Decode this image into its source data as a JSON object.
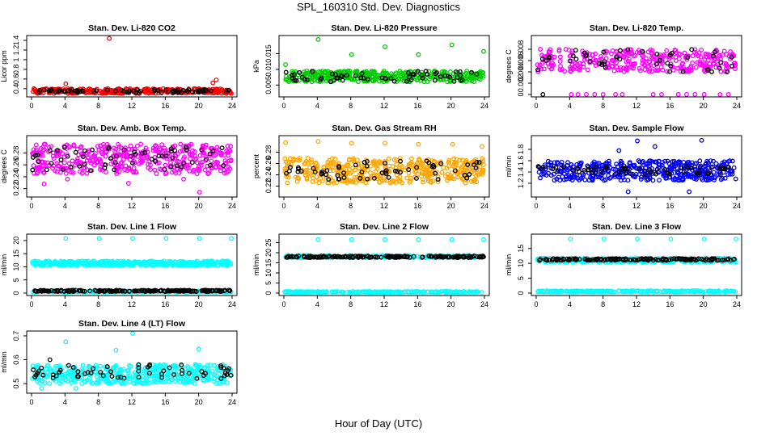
{
  "figure": {
    "title": "SPL_160310  Std. Dev. Diagnostics",
    "xlabel": "Hour of Day (UTC)"
  },
  "chart_data": [
    {
      "type": "scatter",
      "title": "Stan. Dev. Li-820 CO2",
      "ylabel": "Licor ppm",
      "xlim": [
        0,
        24
      ],
      "ylim": [
        0.28,
        1.45
      ],
      "xticks": [
        0,
        4,
        8,
        12,
        16,
        20,
        24
      ],
      "yticks": [
        0.4,
        0.6,
        0.8,
        1.0,
        1.2,
        1.4
      ],
      "series": [
        {
          "color": "#ff0000",
          "band": [
            0.3,
            0.4
          ],
          "n": 300,
          "outliers": [
            [
              9.3,
              1.44
            ],
            [
              22.1,
              0.58
            ],
            [
              21.7,
              0.52
            ],
            [
              4.1,
              0.5
            ],
            [
              23.9,
              0.3
            ]
          ]
        },
        {
          "color": "#000000",
          "band": [
            0.32,
            0.38
          ],
          "n": 70,
          "outliers": []
        }
      ]
    },
    {
      "type": "scatter",
      "title": "Stan. Dev. Li-820 Pressure",
      "ylabel": "kPa",
      "xlim": [
        0,
        24
      ],
      "ylim": [
        0.002,
        0.02
      ],
      "xticks": [
        0,
        4,
        8,
        12,
        16,
        20,
        24
      ],
      "yticks": [
        0.005,
        0.01,
        0.015
      ],
      "series": [
        {
          "color": "#00cc00",
          "band": [
            0.006,
            0.0095
          ],
          "n": 380,
          "outliers": [
            [
              0.2,
              0.0115
            ],
            [
              4.1,
              0.0195
            ],
            [
              8.1,
              0.0147
            ],
            [
              12.1,
              0.0172
            ],
            [
              16.1,
              0.0147
            ],
            [
              20.1,
              0.0178
            ],
            [
              23.9,
              0.0157
            ]
          ]
        },
        {
          "color": "#000000",
          "band": [
            0.006,
            0.0095
          ],
          "n": 60,
          "outliers": []
        }
      ]
    },
    {
      "type": "scatter",
      "title": "Stan. Dev. Li-820 Temp.",
      "ylabel": "degrees C",
      "xlim": [
        0,
        24
      ],
      "ylim": [
        0,
        0.01
      ],
      "xticks": [
        0,
        4,
        8,
        12,
        16,
        20,
        24
      ],
      "yticks": [
        0,
        0.002,
        0.004,
        0.006,
        0.008
      ],
      "series": [
        {
          "color": "#ff00ff",
          "band": [
            0.004,
            0.008
          ],
          "n": 330,
          "outliers": [
            [
              4.2,
              0
            ],
            [
              5,
              0
            ],
            [
              6,
              0
            ],
            [
              7,
              0
            ],
            [
              8,
              0
            ],
            [
              9.5,
              0
            ],
            [
              10.3,
              0
            ],
            [
              14,
              0
            ],
            [
              15,
              0
            ],
            [
              17,
              0
            ],
            [
              18,
              0
            ],
            [
              19,
              0
            ],
            [
              20.1,
              0
            ],
            [
              22,
              0
            ],
            [
              23,
              0
            ]
          ]
        },
        {
          "color": "#000000",
          "band": [
            0.004,
            0.008
          ],
          "n": 45,
          "outliers": [
            [
              0.8,
              0
            ]
          ]
        }
      ]
    },
    {
      "type": "scatter",
      "title": "Stan. Dev. Amb. Box Temp.",
      "ylabel": "degrees C",
      "xlim": [
        0,
        24
      ],
      "ylim": [
        0.21,
        0.305
      ],
      "xticks": [
        0,
        4,
        8,
        12,
        16,
        20,
        24
      ],
      "yticks": [
        0.22,
        0.24,
        0.26,
        0.28
      ],
      "series": [
        {
          "color": "#ff00ff",
          "band": [
            0.245,
            0.295
          ],
          "n": 420,
          "outliers": [
            [
              20.1,
              0.214
            ],
            [
              1.5,
              0.228
            ],
            [
              11.6,
              0.229
            ],
            [
              4.3,
              0.236
            ],
            [
              18.2,
              0.236
            ]
          ]
        },
        {
          "color": "#000000",
          "band": [
            0.25,
            0.29
          ],
          "n": 60,
          "outliers": []
        }
      ]
    },
    {
      "type": "scatter",
      "title": "Stan. Dev. Gas Stream RH",
      "ylabel": "percent",
      "xlim": [
        0,
        24
      ],
      "ylim": [
        0.205,
        0.305
      ],
      "xticks": [
        0,
        4,
        8,
        12,
        16,
        20,
        24
      ],
      "yticks": [
        0.22,
        0.24,
        0.26,
        0.28
      ],
      "series": [
        {
          "color": "#ffa500",
          "band": [
            0.225,
            0.27
          ],
          "n": 420,
          "outliers": [
            [
              0.2,
              0.297
            ],
            [
              4.1,
              0.299
            ],
            [
              8.1,
              0.296
            ],
            [
              12.1,
              0.296
            ],
            [
              16.1,
              0.294
            ],
            [
              20.2,
              0.294
            ],
            [
              23.7,
              0.29
            ]
          ]
        },
        {
          "color": "#000000",
          "band": [
            0.23,
            0.265
          ],
          "n": 60,
          "outliers": []
        }
      ]
    },
    {
      "type": "scatter",
      "title": "Stan. Dev. Sample Flow",
      "ylabel": "ml/min",
      "xlim": [
        0,
        24
      ],
      "ylim": [
        1.0,
        2.0
      ],
      "xticks": [
        0,
        4,
        8,
        12,
        16,
        20,
        24
      ],
      "yticks": [
        1.2,
        1.4,
        1.6,
        1.8
      ],
      "series": [
        {
          "color": "#0000ff",
          "band": [
            1.25,
            1.6
          ],
          "n": 420,
          "outliers": [
            [
              12.1,
              1.95
            ],
            [
              19.8,
              1.96
            ],
            [
              14.2,
              1.85
            ],
            [
              9.9,
              1.78
            ],
            [
              11,
              1.05
            ],
            [
              18.3,
              1.05
            ]
          ]
        },
        {
          "color": "#000000",
          "band": [
            1.35,
            1.5
          ],
          "n": 60,
          "outliers": []
        }
      ]
    },
    {
      "type": "scatter",
      "title": "Stan. Dev. Line 1 Flow",
      "ylabel": "ml/min",
      "xlim": [
        0,
        24
      ],
      "ylim": [
        0,
        21.5
      ],
      "xticks": [
        0,
        4,
        8,
        12,
        16,
        20,
        24
      ],
      "yticks": [
        0,
        5,
        10,
        15,
        20
      ],
      "series": [
        {
          "color": "#00ffff",
          "band": [
            10.5,
            12.2
          ],
          "n": 420,
          "outliers": [
            [
              4.1,
              20.8
            ],
            [
              8.1,
              20.8
            ],
            [
              12.1,
              20.8
            ],
            [
              16.1,
              20.8
            ],
            [
              20.1,
              20.8
            ],
            [
              23.9,
              20.8
            ]
          ]
        },
        {
          "color": "#00ffff",
          "band": [
            0.3,
            0.8
          ],
          "n": 240,
          "outliers": []
        },
        {
          "color": "#000000",
          "band": [
            0.6,
            1.1
          ],
          "n": 180,
          "outliers": []
        }
      ]
    },
    {
      "type": "scatter",
      "title": "Stan. Dev. Line 2 Flow",
      "ylabel": "ml/min",
      "xlim": [
        0,
        24
      ],
      "ylim": [
        0,
        28
      ],
      "xticks": [
        0,
        4,
        8,
        12,
        16,
        20,
        24
      ],
      "yticks": [
        0,
        5,
        10,
        15,
        20,
        25
      ],
      "series": [
        {
          "color": "#00ffff",
          "band": [
            17.5,
            18.5
          ],
          "n": 300,
          "outliers": [
            [
              4.1,
              26.5
            ],
            [
              8.1,
              26.5
            ],
            [
              12.1,
              26.5
            ],
            [
              16.1,
              26.5
            ],
            [
              20.1,
              26.5
            ],
            [
              23.9,
              26.5
            ]
          ]
        },
        {
          "color": "#00ffff",
          "band": [
            0.3,
            0.8
          ],
          "n": 240,
          "outliers": []
        },
        {
          "color": "#000000",
          "band": [
            17.6,
            18.4
          ],
          "n": 160,
          "outliers": []
        }
      ]
    },
    {
      "type": "scatter",
      "title": "Stan. Dev. Line 3 Flow",
      "ylabel": "ml/min",
      "xlim": [
        0,
        24
      ],
      "ylim": [
        0,
        19
      ],
      "xticks": [
        0,
        4,
        8,
        12,
        16,
        20,
        24
      ],
      "yticks": [
        0,
        5,
        10,
        15
      ],
      "series": [
        {
          "color": "#00ffff",
          "band": [
            10.3,
            11.8
          ],
          "n": 300,
          "outliers": [
            [
              4.1,
              18.2
            ],
            [
              8.1,
              18.2
            ],
            [
              12.1,
              18.2
            ],
            [
              16.1,
              18.2
            ],
            [
              20.1,
              18.2
            ],
            [
              23.9,
              18.2
            ]
          ]
        },
        {
          "color": "#00ffff",
          "band": [
            0.3,
            0.8
          ],
          "n": 240,
          "outliers": []
        },
        {
          "color": "#000000",
          "band": [
            11,
            11.6
          ],
          "n": 160,
          "outliers": []
        }
      ]
    },
    {
      "type": "scatter",
      "title": "Stan. Dev. Line 4 (LT) Flow",
      "ylabel": "ml/min",
      "xlim": [
        0,
        24
      ],
      "ylim": [
        0.47,
        0.71
      ],
      "xticks": [
        0,
        4,
        8,
        12,
        16,
        20,
        24
      ],
      "yticks": [
        0.5,
        0.6,
        0.7
      ],
      "series": [
        {
          "color": "#00ffff",
          "band": [
            0.5,
            0.58
          ],
          "n": 400,
          "outliers": [
            [
              12.1,
              0.71
            ],
            [
              4.1,
              0.675
            ],
            [
              20,
              0.645
            ],
            [
              10.1,
              0.64
            ],
            [
              1.2,
              0.48
            ],
            [
              5.3,
              0.48
            ]
          ]
        },
        {
          "color": "#000000",
          "band": [
            0.52,
            0.58
          ],
          "n": 60,
          "outliers": [
            [
              2.2,
              0.6
            ]
          ]
        }
      ]
    }
  ]
}
